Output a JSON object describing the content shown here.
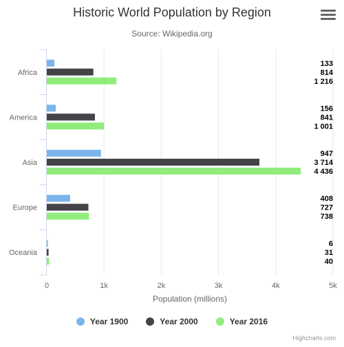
{
  "header": {
    "title": "Historic World Population by Region",
    "subtitle": "Source: Wikipedia.org",
    "menu_icon": "hamburger-menu-icon"
  },
  "credits": "Highcharts.com",
  "chart_data": {
    "type": "bar",
    "orientation": "horizontal",
    "title": "Historic World Population by Region",
    "subtitle": "Source: Wikipedia.org",
    "categories": [
      "Africa",
      "America",
      "Asia",
      "Europe",
      "Oceania"
    ],
    "xlabel": "",
    "ylabel": "Population (millions)",
    "ylim": [
      0,
      5000
    ],
    "ticks": [
      0,
      1000,
      2000,
      3000,
      4000,
      5000
    ],
    "tick_labels": [
      "0",
      "1k",
      "2k",
      "3k",
      "4k",
      "5k"
    ],
    "grid": true,
    "legend": "bottom-center",
    "series": [
      {
        "name": "Year 1900",
        "color": "#7cb5ec",
        "values": [
          133,
          156,
          947,
          408,
          6
        ],
        "labels": [
          "133",
          "156",
          "947",
          "408",
          "6"
        ]
      },
      {
        "name": "Year 2000",
        "color": "#434348",
        "values": [
          814,
          841,
          3714,
          727,
          31
        ],
        "labels": [
          "814",
          "841",
          "3 714",
          "727",
          "31"
        ]
      },
      {
        "name": "Year 2016",
        "color": "#90ed7d",
        "values": [
          1216,
          1001,
          4436,
          738,
          40
        ],
        "labels": [
          "1 216",
          "1 001",
          "4 436",
          "738",
          "40"
        ]
      }
    ]
  }
}
